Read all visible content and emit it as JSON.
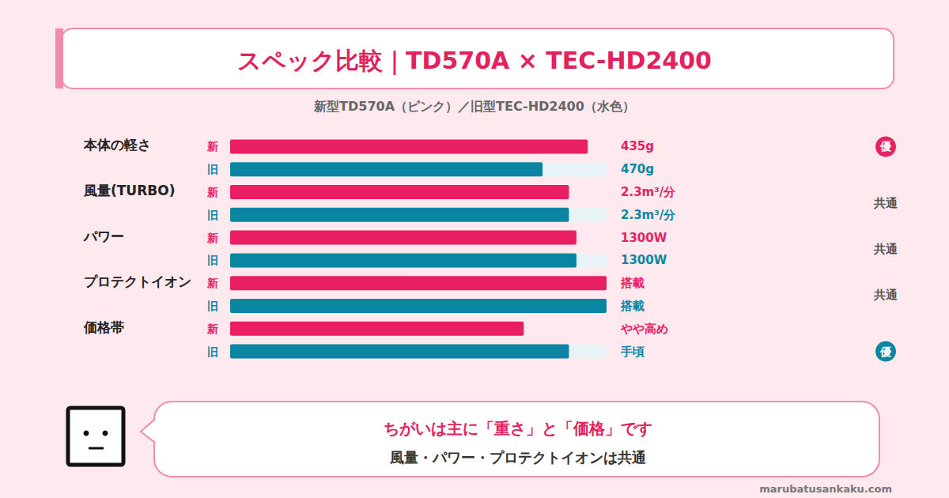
{
  "chart_data": {
    "type": "bar",
    "orientation": "horizontal",
    "title": "スペック比較｜TD570A × TEC-HD2400",
    "subtitle": "新型TD570A（ピンク）／旧型TEC-HD2400（水色）",
    "categories": [
      "本体の軽さ",
      "風量(TURBO)",
      "パワー",
      "プロテクトイオン",
      "価格帯"
    ],
    "series": [
      {
        "name": "新",
        "color": "#e91e63",
        "values": [
          95,
          90,
          92,
          100,
          78
        ],
        "specs": [
          "435g",
          "2.3m³/分",
          "1300W",
          "搭載",
          "やや高め"
        ]
      },
      {
        "name": "旧",
        "color": "#0a86a3",
        "values": [
          83,
          90,
          92,
          100,
          90
        ],
        "specs": [
          "470g",
          "2.3m³/分",
          "1300W",
          "搭載",
          "手頃"
        ]
      }
    ],
    "xlim": [
      0,
      100
    ],
    "tick_labels": false,
    "grid": false,
    "verdicts": [
      {
        "label": "優",
        "series": "新"
      },
      {
        "label": "共通"
      },
      {
        "label": "共通"
      },
      {
        "label": "共通"
      },
      {
        "label": "優",
        "series": "旧"
      }
    ]
  },
  "summary": {
    "headline": "ちがいは主に「重さ」と「価格」です",
    "text": "風量・パワー・プロテクトイオンは共通"
  },
  "footer": "marubatusankaku.com"
}
